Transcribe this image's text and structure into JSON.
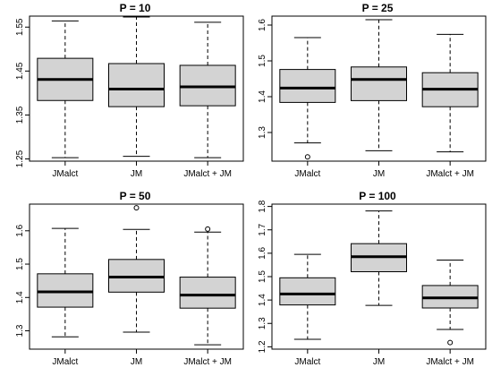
{
  "chart_data": [
    {
      "type": "box",
      "title": "P = 10",
      "categories": [
        "JMalct",
        "JM",
        "JMalct + JM"
      ],
      "yticks": [
        "1.25",
        "1.35",
        "1.45",
        "1.55"
      ],
      "ylim": [
        1.245,
        1.575
      ],
      "boxes": [
        {
          "min": 1.253,
          "q1": 1.383,
          "median": 1.431,
          "q3": 1.479,
          "max": 1.564,
          "outliers": []
        },
        {
          "min": 1.256,
          "q1": 1.369,
          "median": 1.409,
          "q3": 1.467,
          "max": 1.573,
          "outliers": []
        },
        {
          "min": 1.253,
          "q1": 1.371,
          "median": 1.414,
          "q3": 1.463,
          "max": 1.561,
          "outliers": []
        }
      ],
      "box_fill": "#d3d3d3"
    },
    {
      "type": "box",
      "title": "P = 25",
      "categories": [
        "JMalct",
        "JM",
        "JMalct + JM"
      ],
      "yticks": [
        "1.3",
        "1.4",
        "1.5",
        "1.6"
      ],
      "ylim": [
        1.22,
        1.625
      ],
      "boxes": [
        {
          "min": 1.271,
          "q1": 1.384,
          "median": 1.424,
          "q3": 1.476,
          "max": 1.565,
          "outliers": [
            1.232
          ]
        },
        {
          "min": 1.249,
          "q1": 1.389,
          "median": 1.448,
          "q3": 1.483,
          "max": 1.615,
          "outliers": []
        },
        {
          "min": 1.246,
          "q1": 1.372,
          "median": 1.421,
          "q3": 1.467,
          "max": 1.574,
          "outliers": []
        }
      ],
      "box_fill": "#d3d3d3"
    },
    {
      "type": "box",
      "title": "P = 50",
      "categories": [
        "JMalct",
        "JM",
        "JMalct + JM"
      ],
      "yticks": [
        "1.3",
        "1.4",
        "1.5",
        "1.6"
      ],
      "ylim": [
        1.245,
        1.68
      ],
      "boxes": [
        {
          "min": 1.282,
          "q1": 1.371,
          "median": 1.417,
          "q3": 1.471,
          "max": 1.607,
          "outliers": []
        },
        {
          "min": 1.296,
          "q1": 1.416,
          "median": 1.461,
          "q3": 1.514,
          "max": 1.604,
          "outliers": [
            1.669
          ]
        },
        {
          "min": 1.258,
          "q1": 1.368,
          "median": 1.407,
          "q3": 1.461,
          "max": 1.596,
          "outliers": [
            1.605
          ]
        }
      ],
      "box_fill": "#d3d3d3"
    },
    {
      "type": "box",
      "title": "P = 100",
      "categories": [
        "JMalct",
        "JM",
        "JMalct + JM"
      ],
      "yticks": [
        "1.2",
        "1.3",
        "1.4",
        "1.5",
        "1.6",
        "1.7",
        "1.8"
      ],
      "ylim": [
        1.19,
        1.81
      ],
      "boxes": [
        {
          "min": 1.232,
          "q1": 1.379,
          "median": 1.426,
          "q3": 1.495,
          "max": 1.595,
          "outliers": []
        },
        {
          "min": 1.377,
          "q1": 1.521,
          "median": 1.585,
          "q3": 1.641,
          "max": 1.781,
          "outliers": []
        },
        {
          "min": 1.274,
          "q1": 1.366,
          "median": 1.409,
          "q3": 1.462,
          "max": 1.571,
          "outliers": [
            1.218
          ]
        }
      ],
      "box_fill": "#d3d3d3"
    }
  ]
}
